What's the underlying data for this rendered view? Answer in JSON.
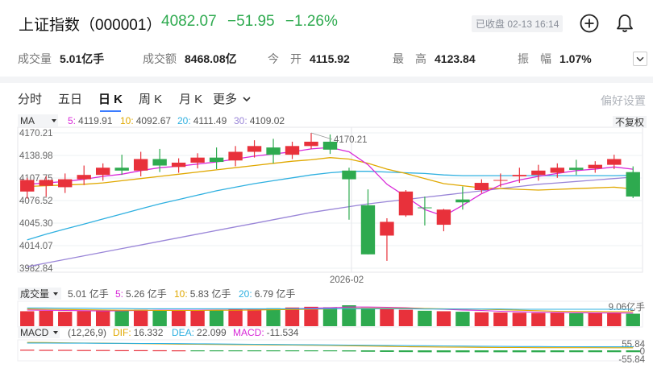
{
  "header": {
    "name": "上证指数（000001）",
    "last": "4082.07",
    "change": "−51.95",
    "change_pct": "−1.26%",
    "status": "已收盘 02-13 16:14",
    "add_icon": "plus-circle-icon",
    "alert_icon": "bell-icon",
    "down_color": "#2eaa4f",
    "up_color": "#e8313b"
  },
  "stats": {
    "volume_label": "成交量",
    "volume": "5.01亿手",
    "amount_label": "成交额",
    "amount": "8468.08亿",
    "open_label": "今　开",
    "open": "4115.92",
    "high_label": "最　高",
    "high": "4123.84",
    "amp_label": "振　幅",
    "amp": "1.07%"
  },
  "tabs": [
    {
      "label": "分时"
    },
    {
      "label": "五日"
    },
    {
      "label": "日 K"
    },
    {
      "label": "周 K"
    },
    {
      "label": "月 K"
    },
    {
      "label": "更多"
    }
  ],
  "active_tab": "日 K",
  "prefs_label": "偏好设置",
  "main_legend": {
    "name": "MA",
    "items": [
      {
        "label": "5:",
        "value": "4119.91",
        "color": "#d829d8"
      },
      {
        "label": "10:",
        "value": "4092.67",
        "color": "#e0a800"
      },
      {
        "label": "20:",
        "value": "4111.49",
        "color": "#2fb0e0"
      },
      {
        "label": "30:",
        "value": "4109.02",
        "color": "#9a86d8"
      }
    ],
    "fq": "不复权"
  },
  "volume_legend": {
    "name": "成交量",
    "items": [
      {
        "label": "",
        "value": "5.01 亿手",
        "color": "#333333"
      },
      {
        "label": "5:",
        "value": "5.26 亿手",
        "color": "#d829d8"
      },
      {
        "label": "10:",
        "value": "5.83 亿手",
        "color": "#e0a800"
      },
      {
        "label": "20:",
        "value": "6.79 亿手",
        "color": "#2fb0e0"
      }
    ],
    "axis_label": "9.06亿手"
  },
  "macd_legend": {
    "name": "MACD",
    "params": "(12,26,9)",
    "items": [
      {
        "label": "DIF:",
        "value": "16.332",
        "color": "#e0a800"
      },
      {
        "label": "DEA:",
        "value": "22.099",
        "color": "#2fb0e0"
      },
      {
        "label": "MACD:",
        "value": "-11.534",
        "color": "#d829d8"
      }
    ],
    "axis_top": "55.84",
    "axis_zero": "0",
    "axis_bottom": "-55.84"
  },
  "chart_data": [
    {
      "type": "candlestick",
      "title": "日 K",
      "y_ticks": [
        "4170.21",
        "4138.98",
        "4107.75",
        "4076.52",
        "4045.30",
        "4014.07",
        "3982.84"
      ],
      "ylim": [
        3982.84,
        4170.21
      ],
      "x_tick_label": "2026-02",
      "max_annotation": "4170.21",
      "candles": [
        {
          "o": 4089,
          "h": 4108,
          "c": 4105,
          "l": 4079
        },
        {
          "o": 4097,
          "h": 4110,
          "c": 4105,
          "l": 4082
        },
        {
          "o": 4095,
          "h": 4114,
          "c": 4106,
          "l": 4087
        },
        {
          "o": 4106,
          "h": 4125,
          "c": 4112,
          "l": 4098
        },
        {
          "o": 4112,
          "h": 4128,
          "c": 4122,
          "l": 4104
        },
        {
          "o": 4122,
          "h": 4140,
          "c": 4118,
          "l": 4112
        },
        {
          "o": 4118,
          "h": 4144,
          "c": 4134,
          "l": 4110
        },
        {
          "o": 4134,
          "h": 4148,
          "c": 4125,
          "l": 4116
        },
        {
          "o": 4123,
          "h": 4135,
          "c": 4129,
          "l": 4115
        },
        {
          "o": 4129,
          "h": 4142,
          "c": 4136,
          "l": 4121
        },
        {
          "o": 4136,
          "h": 4150,
          "c": 4130,
          "l": 4120
        },
        {
          "o": 4132,
          "h": 4152,
          "c": 4144,
          "l": 4124
        },
        {
          "o": 4144,
          "h": 4160,
          "c": 4152,
          "l": 4136
        },
        {
          "o": 4150,
          "h": 4162,
          "c": 4140,
          "l": 4128
        },
        {
          "o": 4140,
          "h": 4158,
          "c": 4152,
          "l": 4134
        },
        {
          "o": 4152,
          "h": 4170.21,
          "c": 4158,
          "l": 4148
        },
        {
          "o": 4158,
          "h": 4168,
          "c": 4147,
          "l": 4141
        },
        {
          "o": 4118,
          "h": 4122,
          "c": 4106,
          "l": 4050
        },
        {
          "o": 4070,
          "h": 4092,
          "c": 4002,
          "l": 4002
        },
        {
          "o": 4028,
          "h": 4052,
          "c": 4047,
          "l": 3993
        },
        {
          "o": 4056,
          "h": 4091,
          "c": 4089,
          "l": 4054
        },
        {
          "o": 4067,
          "h": 4082,
          "c": 4066,
          "l": 4042
        },
        {
          "o": 4043,
          "h": 4065,
          "c": 4064,
          "l": 4034
        },
        {
          "o": 4078,
          "h": 4096,
          "c": 4074,
          "l": 4064
        },
        {
          "o": 4091,
          "h": 4106,
          "c": 4101,
          "l": 4087
        },
        {
          "o": 4104,
          "h": 4114,
          "c": 4105,
          "l": 4095
        },
        {
          "o": 4110,
          "h": 4122,
          "c": 4112,
          "l": 4101
        },
        {
          "o": 4112,
          "h": 4126,
          "c": 4118,
          "l": 4104
        },
        {
          "o": 4115,
          "h": 4128,
          "c": 4122,
          "l": 4108
        },
        {
          "o": 4122,
          "h": 4133,
          "c": 4119,
          "l": 4112
        },
        {
          "o": 4121,
          "h": 4131,
          "c": 4126,
          "l": 4115
        },
        {
          "o": 4126,
          "h": 4140,
          "c": 4134,
          "l": 4120
        },
        {
          "o": 4115.92,
          "h": 4123.84,
          "c": 4082.07,
          "l": 4080
        }
      ],
      "ma": {
        "ma5": [
          4099,
          4101,
          4103,
          4106,
          4110,
          4113,
          4118,
          4122,
          4124,
          4127,
          4130,
          4134,
          4138,
          4141,
          4144,
          4148,
          4150,
          4144,
          4126,
          4099,
          4082,
          4064,
          4055,
          4070,
          4086,
          4098,
          4105,
          4110,
          4114,
          4118,
          4120,
          4123,
          4119.91
        ],
        "ma10": [
          4096,
          4097,
          4098,
          4099,
          4101,
          4104,
          4107,
          4110,
          4113,
          4116,
          4119,
          4122,
          4125,
          4128,
          4131,
          4133,
          4136,
          4134,
          4128,
          4120,
          4114,
          4107,
          4100,
          4097,
          4094,
          4093,
          4092,
          4091,
          4092,
          4093,
          4094,
          4095,
          4092.67
        ],
        "ma20": [
          4022,
          4030,
          4037,
          4044,
          4051,
          4058,
          4065,
          4072,
          4078,
          4084,
          4090,
          4095,
          4100,
          4104,
          4108,
          4112,
          4115,
          4117,
          4117,
          4116,
          4115,
          4114,
          4112,
          4111,
          4111,
          4111,
          4111,
          4111,
          4111,
          4111,
          4111,
          4111,
          4111.49
        ],
        "ma30": [
          3985,
          3990,
          3995,
          4000,
          4005,
          4010,
          4015,
          4020,
          4025,
          4030,
          4035,
          4040,
          4045,
          4050,
          4055,
          4060,
          4064,
          4068,
          4072,
          4075,
          4078,
          4081,
          4084,
          4087,
          4090,
          4093,
          4096,
          4099,
          4101,
          4103,
          4105,
          4107,
          4109.02
        ]
      }
    },
    {
      "type": "bar",
      "title": "成交量",
      "unit": "亿手",
      "ylim": [
        0,
        9.06
      ],
      "values": [
        6.0,
        6.2,
        5.8,
        6.1,
        6.4,
        6.3,
        6.6,
        6.5,
        6.2,
        6.4,
        6.6,
        6.8,
        7.0,
        7.2,
        7.5,
        7.8,
        7.6,
        8.4,
        7.4,
        6.9,
        6.6,
        6.2,
        6.0,
        5.8,
        5.6,
        5.5,
        5.4,
        5.3,
        5.4,
        5.2,
        5.3,
        5.2,
        5.01
      ],
      "ma5": [
        6.5,
        6.4,
        6.3,
        6.2,
        6.1,
        6.2,
        6.3,
        6.4,
        6.4,
        6.4,
        6.5,
        6.5,
        6.6,
        6.8,
        7.0,
        7.2,
        7.4,
        7.7,
        7.7,
        7.6,
        7.4,
        7.1,
        6.8,
        6.5,
        6.3,
        6.0,
        5.8,
        5.6,
        5.5,
        5.4,
        5.3,
        5.3,
        5.26
      ],
      "ma10": [
        6.9,
        6.8,
        6.7,
        6.6,
        6.5,
        6.4,
        6.4,
        6.3,
        6.3,
        6.3,
        6.4,
        6.4,
        6.5,
        6.6,
        6.7,
        6.8,
        6.9,
        7.1,
        7.2,
        7.2,
        7.2,
        7.1,
        7.0,
        6.9,
        6.8,
        6.6,
        6.4,
        6.2,
        6.0,
        5.9,
        5.9,
        5.8,
        5.83
      ],
      "ma20": [
        7.3,
        7.3,
        7.2,
        7.2,
        7.1,
        7.1,
        7.0,
        7.0,
        7.0,
        7.0,
        7.0,
        7.0,
        7.0,
        7.0,
        7.0,
        7.0,
        7.0,
        7.0,
        7.0,
        7.0,
        7.0,
        6.9,
        6.9,
        6.9,
        6.9,
        6.9,
        6.8,
        6.8,
        6.8,
        6.8,
        6.8,
        6.8,
        6.79
      ]
    },
    {
      "type": "bar",
      "title": "MACD",
      "ylim": [
        -55.84,
        55.84
      ],
      "macd": [
        4,
        3,
        3,
        2,
        2,
        1,
        1,
        0.5,
        0,
        -1,
        -2,
        -3,
        -4,
        -4,
        -5,
        -5,
        -6,
        -7,
        -9,
        -10,
        -11,
        -12,
        -12,
        -12,
        -12,
        -12,
        -12,
        -12,
        -11.5,
        -11.5,
        -11.5,
        -11.5,
        -11.534
      ],
      "dif": [
        50,
        49,
        47,
        46,
        45,
        43,
        42,
        41,
        39,
        38,
        37,
        36,
        35,
        34,
        33,
        32,
        31,
        29,
        27,
        25,
        23,
        22,
        21,
        20,
        19,
        18,
        18,
        17,
        17,
        17,
        16.5,
        16.4,
        16.332
      ],
      "dea": [
        46,
        46,
        45,
        45,
        44,
        44,
        43,
        43,
        42,
        41,
        40,
        39,
        38,
        37,
        36,
        35,
        34,
        33,
        32,
        31,
        30,
        29,
        28,
        27,
        26,
        25,
        24,
        24,
        23,
        23,
        22.5,
        22.2,
        22.099
      ]
    }
  ]
}
